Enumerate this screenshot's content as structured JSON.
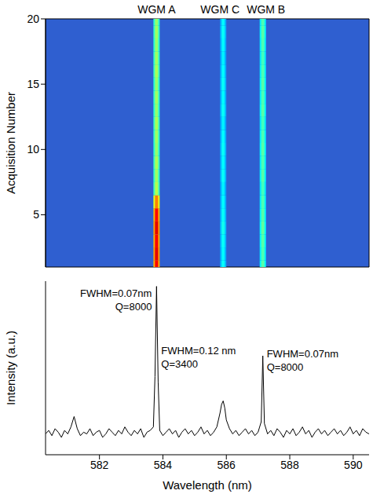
{
  "chart_data": [
    {
      "type": "heatmap",
      "ylabel": "Acquisition Number",
      "xlim": [
        580.3,
        590.5
      ],
      "ylim": [
        1,
        20
      ],
      "yticks": [
        5,
        10,
        15,
        20
      ],
      "tick_labels": "y",
      "acquisitions": [
        1,
        2,
        3,
        4,
        5,
        6,
        7,
        8,
        9,
        10,
        11,
        12,
        13,
        14,
        15,
        16,
        17,
        18,
        19,
        20
      ],
      "bands": [
        {
          "name": "WGM A",
          "x": 583.8,
          "intensities": [
            0.88,
            0.9,
            0.88,
            0.9,
            0.87,
            0.75,
            0.55,
            0.53,
            0.54,
            0.52,
            0.53,
            0.54,
            0.52,
            0.53,
            0.52,
            0.54,
            0.53,
            0.52,
            0.53,
            0.52
          ]
        },
        {
          "name": "WGM C",
          "x": 585.9,
          "intensities": [
            0.38,
            0.37,
            0.38,
            0.39,
            0.38,
            0.37,
            0.36,
            0.38,
            0.37,
            0.38,
            0.37,
            0.36,
            0.38,
            0.37,
            0.38,
            0.37,
            0.36,
            0.37,
            0.38,
            0.37
          ]
        },
        {
          "name": "WGM B",
          "x": 587.15,
          "intensities": [
            0.46,
            0.45,
            0.46,
            0.47,
            0.46,
            0.45,
            0.44,
            0.46,
            0.45,
            0.46,
            0.45,
            0.44,
            0.46,
            0.45,
            0.46,
            0.45,
            0.44,
            0.45,
            0.46,
            0.45
          ]
        }
      ]
    },
    {
      "type": "line",
      "xlabel": "Wavelength (nm)",
      "ylabel": "Intensity (a.u.)",
      "color": "#000000",
      "xlim": [
        580.3,
        590.5
      ],
      "xticks": [
        582,
        584,
        586,
        588,
        590
      ],
      "ylim": [
        0,
        100
      ],
      "tick_labels": "x",
      "x": [
        580.3,
        580.4,
        580.5,
        580.6,
        580.7,
        580.8,
        580.9,
        581.0,
        581.1,
        581.2,
        581.3,
        581.4,
        581.5,
        581.6,
        581.7,
        581.8,
        581.9,
        582.0,
        582.1,
        582.2,
        582.3,
        582.4,
        582.5,
        582.6,
        582.7,
        582.8,
        582.9,
        583.0,
        583.1,
        583.2,
        583.3,
        583.4,
        583.5,
        583.6,
        583.7,
        583.75,
        583.8,
        583.85,
        583.9,
        584.0,
        584.1,
        584.2,
        584.3,
        584.4,
        584.5,
        584.6,
        584.7,
        584.8,
        584.9,
        585.0,
        585.1,
        585.2,
        585.3,
        585.4,
        585.5,
        585.6,
        585.7,
        585.8,
        585.85,
        585.9,
        585.95,
        586.0,
        586.1,
        586.2,
        586.3,
        586.4,
        586.5,
        586.6,
        586.7,
        586.8,
        586.9,
        587.0,
        587.1,
        587.15,
        587.2,
        587.3,
        587.4,
        587.5,
        587.6,
        587.7,
        587.8,
        587.9,
        588.0,
        588.1,
        588.2,
        588.3,
        588.4,
        588.5,
        588.6,
        588.7,
        588.8,
        588.9,
        589.0,
        589.1,
        589.2,
        589.3,
        589.4,
        589.5,
        589.6,
        589.7,
        589.8,
        589.9,
        590.0,
        590.1,
        590.2,
        590.3,
        590.4,
        590.5
      ],
      "values": [
        12,
        14,
        11,
        15,
        13,
        10,
        14,
        12,
        16,
        22,
        15,
        11,
        13,
        12,
        15,
        11,
        13,
        14,
        10,
        12,
        15,
        13,
        11,
        14,
        12,
        16,
        13,
        11,
        14,
        12,
        15,
        10,
        13,
        14,
        16,
        45,
        97,
        42,
        14,
        11,
        13,
        15,
        12,
        14,
        10,
        13,
        15,
        12,
        14,
        11,
        13,
        16,
        12,
        14,
        11,
        13,
        16,
        24,
        29,
        31,
        27,
        20,
        15,
        12,
        14,
        11,
        13,
        15,
        12,
        14,
        11,
        13,
        19,
        57,
        18,
        12,
        14,
        11,
        15,
        13,
        10,
        14,
        12,
        15,
        11,
        13,
        16,
        12,
        14,
        10,
        13,
        15,
        12,
        14,
        11,
        13,
        15,
        12,
        14,
        11,
        13,
        16,
        12,
        14,
        11,
        15,
        13,
        12
      ],
      "annotations": [
        [
          "FWHM=0.07nm",
          "Q=8000"
        ],
        [
          "FWHM=0.12 nm",
          "Q=3400"
        ],
        [
          "FWHM=0.07nm",
          "Q=8000"
        ]
      ]
    }
  ]
}
